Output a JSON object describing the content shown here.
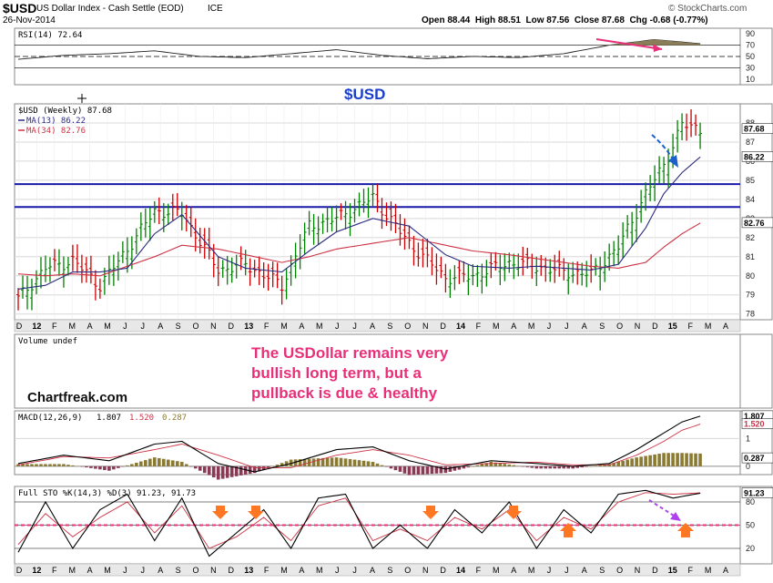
{
  "header": {
    "symbol": "$USD",
    "description": "US Dollar Index - Cash Settle (EOD)",
    "exchange": "ICE",
    "date": "26-Nov-2014",
    "ohlc_line": "Open 88.44  High 88.51  Low 87.56  Close 87.68  Chg -0.68 (-0.77%)",
    "watermark": "© StockCharts.com"
  },
  "annotation": {
    "title": "$USD",
    "lines": [
      "The USDollar remains very",
      "bullish long term, but a",
      "pullback is due & healthy"
    ],
    "site": "Chartfreak.com"
  },
  "colors": {
    "panel_bg": "#ffffff",
    "axis_bg": "#e8e8e8",
    "price_up": "#008000",
    "price_down": "#cc0000",
    "ma13": "#2b2b80",
    "ma34": "#cc3344",
    "support_line": "#1a1aa8",
    "annotation_pink": "#e8307a",
    "arrow_orange": "#ff7722",
    "arrow_blue": "#1a5fcc",
    "arrow_purple": "#b040ee",
    "macd_hist": "#8b7a32",
    "sto_pink_line": "#e8307a"
  },
  "chart_data": [
    {
      "type": "line",
      "panel": "RSI",
      "legend": "RSI(14) 72.64",
      "y_ticks": [
        10,
        30,
        50,
        70,
        90
      ],
      "ylim": [
        0,
        100
      ],
      "levels": [
        30,
        50,
        70
      ],
      "x_weeks": [
        0,
        10,
        20,
        30,
        40,
        50,
        60,
        70,
        80,
        90,
        100,
        110,
        120,
        130,
        140,
        150
      ],
      "values": [
        45,
        52,
        55,
        60,
        50,
        48,
        55,
        62,
        52,
        46,
        50,
        48,
        55,
        70,
        80,
        72.64
      ]
    },
    {
      "type": "line",
      "panel": "price",
      "series_label": "$USD (Weekly) 87.68",
      "ma13_label": "MA(13) 86.22",
      "ma34_label": "MA(34) 82.76",
      "y_ticks": [
        78,
        79,
        80,
        81,
        82,
        83,
        84,
        85,
        86,
        87,
        88
      ],
      "ylim": [
        77.7,
        89
      ],
      "last_labels": [
        "87.68",
        "86.22",
        "82.76"
      ],
      "horizontal_lines": [
        84.8,
        83.6
      ],
      "x_weeks": [
        0,
        6,
        12,
        18,
        24,
        30,
        36,
        44,
        50,
        58,
        64,
        70,
        78,
        86,
        94,
        100,
        108,
        114,
        120,
        126,
        132,
        138,
        142,
        146,
        150
      ],
      "close": [
        78.8,
        80.4,
        80.8,
        79.5,
        81.4,
        83.4,
        83.3,
        80.3,
        80.6,
        79.5,
        82.6,
        83.0,
        84.1,
        81.7,
        79.9,
        80.0,
        80.7,
        80.5,
        80.2,
        80.1,
        81.5,
        84.3,
        85.8,
        87.9,
        87.7
      ],
      "ma13": [
        79.3,
        79.5,
        80.2,
        80.2,
        80.4,
        82.2,
        83.2,
        81.0,
        80.4,
        80.2,
        81.3,
        82.3,
        83.0,
        82.6,
        81.1,
        80.5,
        80.4,
        80.5,
        80.4,
        80.3,
        80.6,
        82.5,
        84.3,
        85.4,
        86.22
      ],
      "ma34": [
        80.1,
        80.0,
        80.1,
        80.0,
        80.5,
        81.0,
        81.6,
        81.4,
        81.1,
        80.7,
        81.0,
        81.4,
        81.7,
        82.0,
        81.6,
        81.3,
        81.1,
        80.9,
        80.7,
        80.5,
        80.4,
        80.7,
        81.5,
        82.2,
        82.76
      ],
      "x_tick_labels": [
        "D",
        "12",
        "F",
        "M",
        "A",
        "M",
        "J",
        "J",
        "A",
        "S",
        "O",
        "N",
        "D",
        "13",
        "F",
        "M",
        "A",
        "M",
        "J",
        "J",
        "A",
        "S",
        "O",
        "N",
        "D",
        "14",
        "F",
        "M",
        "A",
        "M",
        "J",
        "J",
        "A",
        "S",
        "O",
        "N",
        "D",
        "15",
        "F",
        "M",
        "A"
      ]
    },
    {
      "type": "area",
      "panel": "volume",
      "legend": "Volume undef",
      "values": []
    },
    {
      "type": "line",
      "panel": "MACD",
      "legend_prefix": "MACD(12,26,9)",
      "legend_values": [
        "1.807",
        "1.520",
        "0.287"
      ],
      "y_ticks": [
        0,
        1
      ],
      "ylim": [
        -0.3,
        2.0
      ],
      "last_labels": [
        "1.807",
        "1.520",
        "0.287"
      ],
      "x_weeks": [
        0,
        10,
        20,
        30,
        36,
        44,
        52,
        60,
        70,
        78,
        86,
        94,
        104,
        114,
        122,
        130,
        136,
        142,
        146,
        150
      ],
      "macd": [
        0.1,
        0.4,
        0.2,
        0.8,
        0.9,
        0.1,
        -0.2,
        0.1,
        0.6,
        0.7,
        0.2,
        -0.1,
        0.2,
        0.1,
        0.0,
        0.1,
        0.6,
        1.2,
        1.6,
        1.807
      ],
      "signal": [
        0.05,
        0.35,
        0.3,
        0.6,
        0.8,
        0.4,
        -0.05,
        -0.05,
        0.4,
        0.6,
        0.4,
        0.05,
        0.1,
        0.15,
        0.05,
        0.05,
        0.4,
        0.9,
        1.3,
        1.52
      ]
    },
    {
      "type": "line",
      "panel": "STO",
      "legend": "Full STO %K(14,3) %D(3) 91.23, 91.73",
      "y_ticks": [
        20,
        50,
        80
      ],
      "ylim": [
        0,
        100
      ],
      "last_labels": [
        "91.23"
      ],
      "x_weeks": [
        0,
        6,
        12,
        18,
        24,
        30,
        36,
        42,
        48,
        54,
        60,
        66,
        72,
        78,
        84,
        90,
        96,
        102,
        108,
        114,
        120,
        126,
        132,
        138,
        144,
        150
      ],
      "k": [
        15,
        80,
        20,
        70,
        90,
        30,
        85,
        10,
        40,
        70,
        20,
        85,
        90,
        20,
        50,
        20,
        70,
        40,
        80,
        20,
        70,
        40,
        90,
        95,
        85,
        91.23
      ],
      "d": [
        25,
        65,
        35,
        60,
        80,
        40,
        75,
        20,
        35,
        60,
        30,
        75,
        85,
        30,
        45,
        30,
        60,
        45,
        70,
        30,
        60,
        45,
        80,
        92,
        90,
        91.73
      ]
    }
  ]
}
